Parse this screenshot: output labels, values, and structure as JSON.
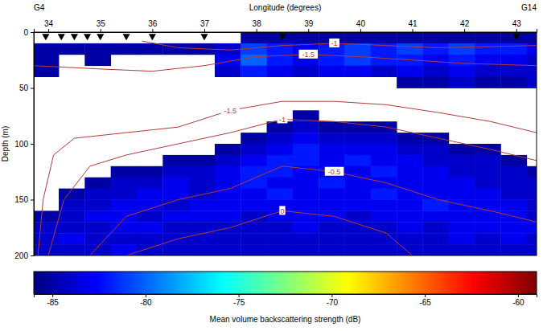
{
  "chart_data": {
    "type": "heatmap",
    "x_label": "Longitude (degrees)",
    "y_label": "Depth (m)",
    "xlim": [
      33.72,
      43.39
    ],
    "xticks": [
      34,
      35,
      36,
      37,
      38,
      39,
      40,
      41,
      42,
      43
    ],
    "ylim": [
      0,
      200
    ],
    "yticks": [
      0,
      50,
      100,
      150,
      200
    ],
    "x_bins": [
      33.72,
      34.2,
      34.7,
      35.2,
      35.7,
      36.2,
      36.7,
      37.2,
      37.7,
      38.2,
      38.7,
      39.2,
      39.7,
      40.2,
      40.7,
      41.2,
      41.7,
      42.2,
      42.7,
      43.2,
      43.39
    ],
    "y_bins": [
      0,
      10,
      20,
      30,
      40,
      50,
      60,
      70,
      80,
      90,
      100,
      110,
      120,
      130,
      140,
      150,
      160,
      170,
      180,
      190,
      200
    ],
    "cells": [
      [
        null,
        null,
        null,
        null,
        null,
        null,
        null,
        null,
        -85,
        -85,
        -85,
        -85,
        -85,
        -85,
        -85,
        -85,
        -85,
        -85,
        -85,
        -85
      ],
      [
        -85,
        -85,
        -85,
        -85,
        -85,
        -85,
        -85,
        -84,
        -81,
        -82,
        -83,
        -82,
        -81,
        -82,
        -81,
        -82,
        -81,
        -82,
        -82,
        -83
      ],
      [
        -85,
        null,
        -85,
        null,
        null,
        null,
        null,
        -83,
        -80,
        -82,
        -83,
        -82,
        -81,
        -82,
        -82,
        -83,
        -82,
        -83,
        -83,
        -84
      ],
      [
        -85,
        null,
        null,
        null,
        null,
        null,
        null,
        -84,
        -82,
        -83,
        -84,
        -83,
        -83,
        -84,
        -83,
        -84,
        -83,
        -84,
        -84,
        -84
      ],
      [
        null,
        null,
        null,
        null,
        null,
        null,
        null,
        null,
        null,
        null,
        null,
        null,
        null,
        null,
        -85,
        -85,
        -84,
        -85,
        -85,
        -84
      ],
      [
        null,
        null,
        null,
        null,
        null,
        null,
        null,
        null,
        null,
        null,
        null,
        null,
        null,
        null,
        null,
        null,
        null,
        null,
        null,
        null
      ],
      [
        null,
        null,
        null,
        null,
        null,
        null,
        null,
        null,
        null,
        null,
        null,
        null,
        null,
        null,
        null,
        null,
        null,
        null,
        null,
        null
      ],
      [
        null,
        null,
        null,
        null,
        null,
        null,
        null,
        null,
        null,
        null,
        -85,
        null,
        null,
        null,
        null,
        null,
        null,
        null,
        null,
        null
      ],
      [
        null,
        null,
        null,
        null,
        null,
        null,
        null,
        null,
        null,
        -85,
        -84,
        -85,
        -85,
        -85,
        null,
        null,
        null,
        null,
        null,
        null
      ],
      [
        null,
        null,
        null,
        null,
        null,
        null,
        null,
        null,
        -85,
        -84,
        -83,
        -84,
        -84,
        -84,
        -85,
        -85,
        null,
        null,
        null,
        null
      ],
      [
        null,
        null,
        null,
        null,
        null,
        null,
        null,
        -85,
        -84,
        -83,
        -82,
        -83,
        -83,
        -83,
        -84,
        -84,
        -85,
        -85,
        null,
        null
      ],
      [
        null,
        null,
        null,
        null,
        null,
        -85,
        -85,
        -84,
        -83,
        -82,
        -82,
        -83,
        -82,
        -83,
        -83,
        -84,
        -84,
        -84,
        -85,
        null
      ],
      [
        null,
        null,
        null,
        -85,
        -85,
        -84,
        -84,
        -83,
        -82,
        -82,
        -83,
        -83,
        -83,
        -82,
        -83,
        -83,
        -84,
        -84,
        -84,
        -85
      ],
      [
        null,
        null,
        -85,
        -84,
        -84,
        -83,
        -84,
        -83,
        -82,
        -83,
        -83,
        -82,
        -83,
        -83,
        -83,
        -83,
        -83,
        -84,
        -84,
        -84
      ],
      [
        null,
        -85,
        -84,
        -84,
        -83,
        -83,
        -84,
        -83,
        -83,
        -82,
        -83,
        -83,
        -83,
        -82,
        -83,
        -83,
        -83,
        -83,
        -84,
        -84
      ],
      [
        null,
        -84,
        -84,
        -83,
        -83,
        -84,
        -83,
        -83,
        -83,
        -83,
        -83,
        -83,
        -83,
        -83,
        -83,
        -82,
        -83,
        -83,
        -83,
        -84
      ],
      [
        -85,
        -84,
        -83,
        -83,
        -84,
        -83,
        -83,
        -83,
        -84,
        -83,
        -83,
        -83,
        -84,
        -83,
        -83,
        -83,
        -83,
        -83,
        -83,
        -84
      ],
      [
        -84,
        -84,
        -84,
        -83,
        -83,
        -84,
        -84,
        -84,
        -84,
        -84,
        -83,
        -84,
        -84,
        -84,
        -83,
        -84,
        -83,
        -83,
        -83,
        -83
      ],
      [
        -84,
        -83,
        -84,
        -84,
        -84,
        -84,
        -84,
        -84,
        -84,
        -84,
        -84,
        -84,
        -84,
        -84,
        -84,
        -84,
        -83,
        -84,
        -83,
        -84
      ],
      [
        -84,
        -84,
        -84,
        -83,
        -84,
        -84,
        -84,
        -84,
        -84,
        -84,
        -84,
        -84,
        -84,
        -84,
        -84,
        -84,
        -84,
        -84,
        -84,
        -84
      ]
    ],
    "colorbar": {
      "label": "Mean volume backscattering strength (dB)",
      "range": [
        -86,
        -59
      ],
      "ticks": [
        -85,
        -80,
        -75,
        -70,
        -65,
        -60
      ]
    },
    "contours": [
      {
        "level": -1,
        "lon": [
          35.8,
          36.5,
          37.5,
          38.5,
          39.5,
          40.5,
          41.5,
          43.39
        ],
        "depth": [
          8,
          14,
          16,
          12,
          10,
          12,
          14,
          12
        ]
      },
      {
        "level": -1.5,
        "lon": [
          33.72,
          35,
          36,
          37,
          38,
          39,
          40,
          41,
          42,
          43.39
        ],
        "depth": [
          30,
          33,
          35,
          30,
          22,
          20,
          22,
          25,
          28,
          30
        ]
      },
      {
        "level": -1.5,
        "lon": [
          33.8,
          33.9,
          34.1,
          34.5,
          35.5,
          36.5,
          37.5,
          38.5,
          39.5,
          40.5,
          41.5,
          42.5,
          43.39
        ],
        "depth": [
          200,
          150,
          110,
          95,
          90,
          85,
          70,
          62,
          62,
          65,
          72,
          80,
          90
        ]
      },
      {
        "level": -1,
        "lon": [
          34.0,
          34.3,
          34.8,
          35.5,
          36.5,
          37.5,
          38.5,
          39.5,
          40.5,
          41.5,
          42.5,
          43.39
        ],
        "depth": [
          200,
          150,
          120,
          110,
          100,
          90,
          78,
          80,
          85,
          95,
          105,
          115
        ]
      },
      {
        "level": -0.5,
        "lon": [
          34.8,
          35.5,
          36.5,
          37.5,
          38.5,
          39.5,
          40.5,
          41.5,
          42.5,
          43.39
        ],
        "depth": [
          200,
          165,
          150,
          140,
          120,
          125,
          135,
          150,
          160,
          170
        ]
      },
      {
        "level": 0,
        "lon": [
          35.5,
          36.5,
          37.5,
          38.5,
          39.5,
          40.5,
          41
        ],
        "depth": [
          200,
          185,
          175,
          160,
          165,
          180,
          200
        ]
      }
    ],
    "stations": [
      33.95,
      34.25,
      34.5,
      34.75,
      35.0,
      35.5,
      36.0,
      37.0,
      38.5,
      43.0
    ],
    "station_labels": [
      "G4",
      "G14"
    ]
  }
}
